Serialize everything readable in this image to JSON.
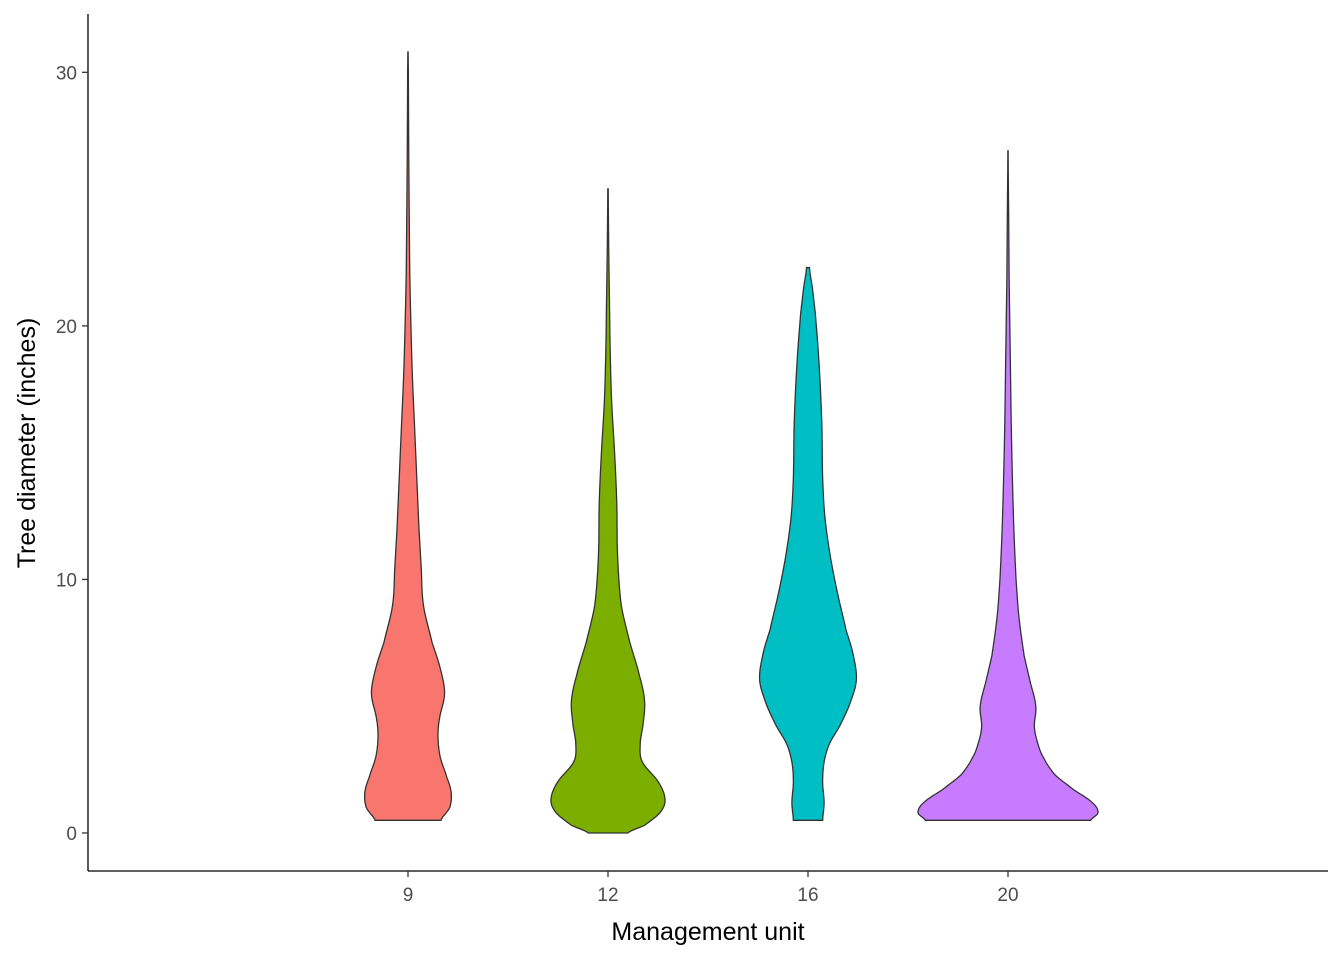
{
  "chart_data": {
    "type": "violin",
    "xlabel": "Management unit",
    "ylabel": "Tree diameter (inches)",
    "ylim": [
      -1.5,
      32.3
    ],
    "yticks": [
      0,
      10,
      20,
      30
    ],
    "grid": false,
    "legend": "none",
    "categories": [
      "9",
      "12",
      "16",
      "20"
    ],
    "series": [
      {
        "category": "9",
        "color": "#F8766D",
        "min": 0.5,
        "max": 30.8,
        "density": [
          [
            0.5,
            0.45
          ],
          [
            1.0,
            0.57
          ],
          [
            1.6,
            0.59
          ],
          [
            2.2,
            0.53
          ],
          [
            3.0,
            0.44
          ],
          [
            3.8,
            0.41
          ],
          [
            4.5,
            0.43
          ],
          [
            5.5,
            0.5
          ],
          [
            6.5,
            0.44
          ],
          [
            7.5,
            0.33
          ],
          [
            9.0,
            0.21
          ],
          [
            10.5,
            0.18
          ],
          [
            12.0,
            0.15
          ],
          [
            14.0,
            0.12
          ],
          [
            16.0,
            0.09
          ],
          [
            18.0,
            0.06
          ],
          [
            20.0,
            0.04
          ],
          [
            22.0,
            0.025
          ],
          [
            24.0,
            0.018
          ],
          [
            26.0,
            0.012
          ],
          [
            28.0,
            0.008
          ],
          [
            30.0,
            0.005
          ],
          [
            30.8,
            0.002
          ]
        ]
      },
      {
        "category": "12",
        "color": "#7CAE00",
        "min": 0.0,
        "max": 25.4,
        "density": [
          [
            0.0,
            0.27
          ],
          [
            0.3,
            0.5
          ],
          [
            0.8,
            0.71
          ],
          [
            1.3,
            0.78
          ],
          [
            2.0,
            0.69
          ],
          [
            2.8,
            0.47
          ],
          [
            3.5,
            0.44
          ],
          [
            4.3,
            0.48
          ],
          [
            5.2,
            0.5
          ],
          [
            6.2,
            0.43
          ],
          [
            7.5,
            0.3
          ],
          [
            9.0,
            0.18
          ],
          [
            11.0,
            0.13
          ],
          [
            13.0,
            0.12
          ],
          [
            15.0,
            0.09
          ],
          [
            17.0,
            0.05
          ],
          [
            19.0,
            0.03
          ],
          [
            21.0,
            0.02
          ],
          [
            23.0,
            0.01
          ],
          [
            25.4,
            0.003
          ]
        ]
      },
      {
        "category": "16",
        "color": "#00BFC4",
        "min": 0.5,
        "max": 22.3,
        "density": [
          [
            0.5,
            0.2
          ],
          [
            1.2,
            0.22
          ],
          [
            2.0,
            0.2
          ],
          [
            2.8,
            0.22
          ],
          [
            3.5,
            0.29
          ],
          [
            4.2,
            0.43
          ],
          [
            5.0,
            0.56
          ],
          [
            6.0,
            0.66
          ],
          [
            7.0,
            0.62
          ],
          [
            8.0,
            0.52
          ],
          [
            9.5,
            0.4
          ],
          [
            11.0,
            0.3
          ],
          [
            12.5,
            0.23
          ],
          [
            14.0,
            0.2
          ],
          [
            16.0,
            0.19
          ],
          [
            17.5,
            0.17
          ],
          [
            19.0,
            0.14
          ],
          [
            20.5,
            0.1
          ],
          [
            21.5,
            0.06
          ],
          [
            22.3,
            0.02
          ]
        ]
      },
      {
        "category": "20",
        "color": "#C77CFF",
        "min": 0.5,
        "max": 26.9,
        "density": [
          [
            0.5,
            1.13
          ],
          [
            0.8,
            1.23
          ],
          [
            1.2,
            1.15
          ],
          [
            1.7,
            0.9
          ],
          [
            2.3,
            0.64
          ],
          [
            3.0,
            0.48
          ],
          [
            3.6,
            0.4
          ],
          [
            4.2,
            0.36
          ],
          [
            5.0,
            0.38
          ],
          [
            6.0,
            0.3
          ],
          [
            7.0,
            0.22
          ],
          [
            8.5,
            0.15
          ],
          [
            10.0,
            0.11
          ],
          [
            12.0,
            0.08
          ],
          [
            14.0,
            0.06
          ],
          [
            16.0,
            0.045
          ],
          [
            18.0,
            0.035
          ],
          [
            20.0,
            0.025
          ],
          [
            22.0,
            0.015
          ],
          [
            24.0,
            0.01
          ],
          [
            26.9,
            0.002
          ]
        ]
      }
    ]
  }
}
